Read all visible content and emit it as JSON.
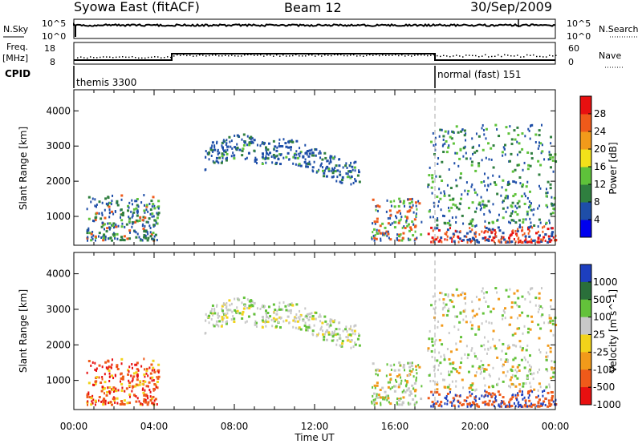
{
  "header": {
    "title": "Syowa East (fitACF)",
    "beam": "Beam 12",
    "date": "30/Sep/2009"
  },
  "panels": {
    "nsky": {
      "label": "N.Sky",
      "ticks": [
        "10^5",
        "10^0"
      ],
      "right_label": "N.Search",
      "right_ticks": [
        "10^5",
        "10^0"
      ]
    },
    "freq": {
      "label_line1": "Freq.",
      "label_line2": "[MHz]",
      "left_ticks": [
        "18",
        "8"
      ],
      "right_label": "Nave",
      "right_ticks": [
        "60",
        "0"
      ]
    },
    "cpid": {
      "label": "CPID",
      "segments": [
        "themis 3300",
        "normal (fast) 151"
      ]
    }
  },
  "chart_data": [
    {
      "type": "heatmap",
      "title": "",
      "xlabel": "",
      "ylabel": "Slant Range [km]",
      "x_ticks": [
        "00:00",
        "04:00",
        "08:00",
        "12:00",
        "16:00",
        "20:00",
        "00:00"
      ],
      "xlim_hours": [
        0,
        24
      ],
      "y_ticks": [
        1000,
        2000,
        3000,
        4000
      ],
      "ylim": [
        180,
        4600
      ],
      "colorbar": {
        "label": "Power [dB]",
        "ticks": [
          4,
          8,
          12,
          16,
          20,
          24,
          28
        ],
        "colors": [
          "#0000ee",
          "#1e4ea8",
          "#2f7f3f",
          "#5ec23a",
          "#f2e11a",
          "#f29a1a",
          "#ef5a1a",
          "#e81010"
        ]
      }
    },
    {
      "type": "heatmap",
      "title": "",
      "xlabel": "Time UT",
      "ylabel": "Slant Range [km]",
      "x_ticks": [
        "00:00",
        "04:00",
        "08:00",
        "12:00",
        "16:00",
        "20:00",
        "00:00"
      ],
      "xlim_hours": [
        0,
        24
      ],
      "y_ticks": [
        1000,
        2000,
        3000,
        4000
      ],
      "ylim": [
        180,
        4600
      ],
      "colorbar": {
        "label": "Velocity [m s^-1]",
        "ticks": [
          1000,
          500,
          100,
          25,
          -25,
          -100,
          -500,
          -1000
        ],
        "colors": [
          "#1d3fbf",
          "#2a6f3a",
          "#63c23a",
          "#c8c8c8",
          "#f2d31a",
          "#f29a1a",
          "#ef5a1a",
          "#e81010"
        ]
      }
    }
  ]
}
